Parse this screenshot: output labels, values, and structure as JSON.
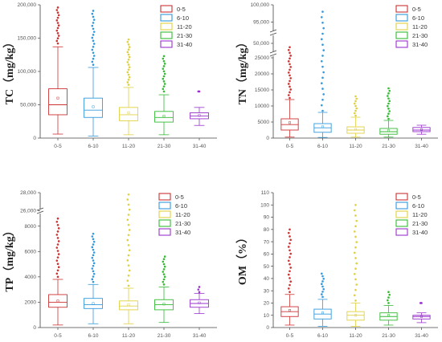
{
  "figure_colors": {
    "0-5": "#cc3333",
    "6-10": "#3399dd",
    "11-20": "#e0d040",
    "21-30": "#33bb33",
    "31-40": "#9933cc"
  },
  "chart_data": [
    {
      "type": "box",
      "id": "TC",
      "ylabel": "TC（mg/kg）",
      "categories": [
        "0-5",
        "6-10",
        "11-20",
        "21-30",
        "31-40"
      ],
      "legend": [
        "0-5",
        "6-10",
        "11-20",
        "21-30",
        "31-40"
      ],
      "ylim": [
        0,
        200000
      ],
      "yticks": [
        0,
        50000,
        100000,
        150000,
        200000
      ],
      "ytick_labels": [
        "0",
        "50,000",
        "100,000",
        "150,000",
        "200,000"
      ],
      "axis_breaks": [],
      "boxes": [
        {
          "q1": 35000,
          "median": 50000,
          "q3": 74000,
          "wlo": 6000,
          "whi": 137000,
          "mean": 60000,
          "out_lo": 142000,
          "out_hi": 196000
        },
        {
          "q1": 31000,
          "median": 42000,
          "q3": 60000,
          "wlo": 3000,
          "whi": 106000,
          "mean": 47000,
          "out_lo": 110000,
          "out_hi": 191000
        },
        {
          "q1": 26000,
          "median": 35000,
          "q3": 46000,
          "wlo": 5000,
          "whi": 76000,
          "mean": 38000,
          "out_lo": 80000,
          "out_hi": 148000
        },
        {
          "q1": 24000,
          "median": 31000,
          "q3": 40000,
          "wlo": 5000,
          "whi": 65000,
          "mean": 33000,
          "out_lo": 70000,
          "out_hi": 123000
        },
        {
          "q1": 29000,
          "median": 33000,
          "q3": 38000,
          "wlo": 19000,
          "whi": 46000,
          "mean": 34000,
          "out_lo": 70000,
          "out_hi": 70000
        }
      ]
    },
    {
      "type": "box",
      "id": "TN",
      "ylabel": "TN（mg/kg）",
      "categories": [
        "0-5",
        "6-10",
        "11-20",
        "21-30",
        "31-40"
      ],
      "legend": [
        "0-5",
        "6-10",
        "11-20",
        "21-30",
        "31-40"
      ],
      "ylim": [
        0,
        100000
      ],
      "yticks": [
        0,
        5000,
        10000,
        15000,
        20000,
        25000,
        50000,
        95000,
        100000
      ],
      "ytick_labels": [
        "0",
        "5000",
        "10000",
        "15000",
        "20000",
        "25000",
        "50,000",
        "95,000",
        "100,000"
      ],
      "axis_breaks": [
        {
          "from": 25000,
          "to": 45000
        },
        {
          "from": 55000,
          "to": 93000
        }
      ],
      "boxes": [
        {
          "q1": 2500,
          "median": 4200,
          "q3": 6000,
          "wlo": 300,
          "whi": 12000,
          "mean": 4800,
          "out_lo": 12500,
          "out_hi": 47000
        },
        {
          "q1": 1800,
          "median": 3200,
          "q3": 4500,
          "wlo": 200,
          "whi": 8000,
          "mean": 3500,
          "out_lo": 8500,
          "out_hi": 98000
        },
        {
          "q1": 1500,
          "median": 2500,
          "q3": 3500,
          "wlo": 300,
          "whi": 6500,
          "mean": 2700,
          "out_lo": 7000,
          "out_hi": 13000
        },
        {
          "q1": 1200,
          "median": 2000,
          "q3": 3000,
          "wlo": 300,
          "whi": 5500,
          "mean": 2300,
          "out_lo": 6000,
          "out_hi": 15500
        },
        {
          "q1": 2000,
          "median": 2500,
          "q3": 3300,
          "wlo": 1200,
          "whi": 4000,
          "mean": 2600,
          "out_lo": 0,
          "out_hi": 0
        }
      ]
    },
    {
      "type": "box",
      "id": "TP",
      "ylabel": "TP（mg/kg）",
      "categories": [
        "0-5",
        "6-10",
        "11-20",
        "21-30",
        "31-40"
      ],
      "legend": [
        "0-5",
        "6-10",
        "11-20",
        "21-30",
        "31-40"
      ],
      "ylim": [
        0,
        28000
      ],
      "yticks": [
        0,
        2000,
        4000,
        6000,
        8000,
        26000,
        28000
      ],
      "ytick_labels": [
        "0",
        "2000",
        "4000",
        "6000",
        "8000",
        "26,000",
        "28,000"
      ],
      "axis_breaks": [
        {
          "from": 9500,
          "to": 25500
        }
      ],
      "boxes": [
        {
          "q1": 1600,
          "median": 2000,
          "q3": 2600,
          "wlo": 200,
          "whi": 3800,
          "mean": 2100,
          "out_lo": 4000,
          "out_hi": 8600
        },
        {
          "q1": 1500,
          "median": 1800,
          "q3": 2300,
          "wlo": 300,
          "whi": 3400,
          "mean": 1900,
          "out_lo": 3600,
          "out_hi": 7400
        },
        {
          "q1": 1400,
          "median": 1700,
          "q3": 2100,
          "wlo": 300,
          "whi": 3100,
          "mean": 1800,
          "out_lo": 3300,
          "out_hi": 27800
        },
        {
          "q1": 1400,
          "median": 1800,
          "q3": 2200,
          "wlo": 400,
          "whi": 3200,
          "mean": 1850,
          "out_lo": 3400,
          "out_hi": 5600
        },
        {
          "q1": 1600,
          "median": 1900,
          "q3": 2200,
          "wlo": 1100,
          "whi": 2700,
          "mean": 1950,
          "out_lo": 2800,
          "out_hi": 3200
        }
      ]
    },
    {
      "type": "box",
      "id": "OM",
      "ylabel": "OM（%）",
      "categories": [
        "0-5",
        "6-10",
        "11-20",
        "21-30",
        "31-40"
      ],
      "legend": [
        "0-5",
        "6-10",
        "11-20",
        "21-30",
        "31-40"
      ],
      "ylim": [
        0,
        110
      ],
      "yticks": [
        0,
        10,
        20,
        30,
        40,
        50,
        60,
        70,
        80,
        90,
        100,
        110
      ],
      "ytick_labels": [
        "0",
        "10",
        "20",
        "30",
        "40",
        "50",
        "60",
        "70",
        "80",
        "90",
        "100",
        "110"
      ],
      "axis_breaks": [],
      "boxes": [
        {
          "q1": 9,
          "median": 13,
          "q3": 17,
          "wlo": 2,
          "whi": 27,
          "mean": 14,
          "out_lo": 29,
          "out_hi": 80
        },
        {
          "q1": 7,
          "median": 11,
          "q3": 15,
          "wlo": 1,
          "whi": 23,
          "mean": 12,
          "out_lo": 25,
          "out_hi": 44
        },
        {
          "q1": 6,
          "median": 10,
          "q3": 13,
          "wlo": 1,
          "whi": 20,
          "mean": 10,
          "out_lo": 22,
          "out_hi": 100
        },
        {
          "q1": 6,
          "median": 9,
          "q3": 12,
          "wlo": 2,
          "whi": 18,
          "mean": 10,
          "out_lo": 20,
          "out_hi": 29
        },
        {
          "q1": 7,
          "median": 9,
          "q3": 10,
          "wlo": 4,
          "whi": 12,
          "mean": 9,
          "out_lo": 20,
          "out_hi": 20
        }
      ]
    }
  ]
}
